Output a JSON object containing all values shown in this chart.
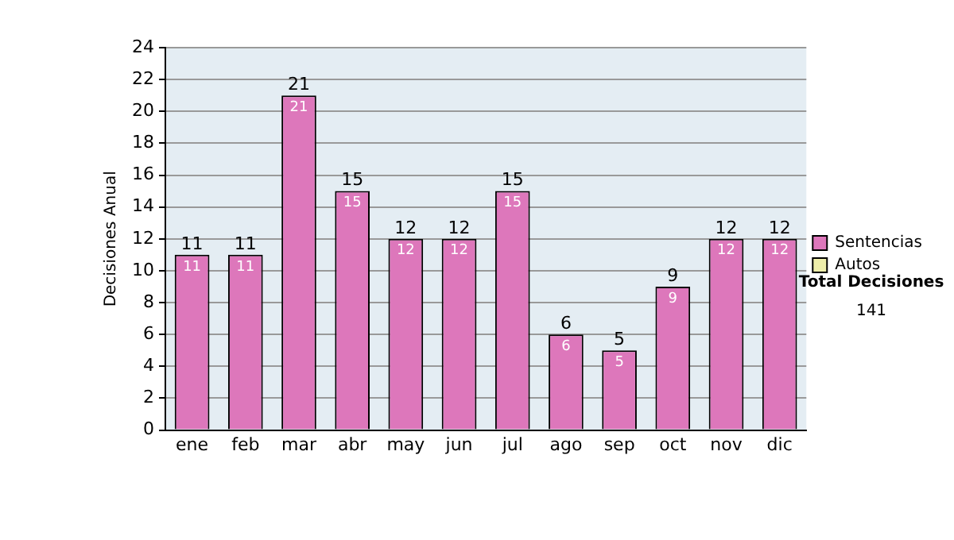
{
  "chart_data": {
    "type": "bar",
    "ylabel": "Decisiones Anual",
    "categories": [
      "ene",
      "feb",
      "mar",
      "abr",
      "may",
      "jun",
      "jul",
      "ago",
      "sep",
      "oct",
      "nov",
      "dic"
    ],
    "series": [
      {
        "name": "Sentencias",
        "color": "#dd77bb",
        "values": [
          11,
          11,
          21,
          15,
          12,
          12,
          15,
          6,
          5,
          9,
          12,
          12
        ],
        "value_labels": [
          "11",
          "11",
          "21",
          "15",
          "12",
          "12",
          "15",
          "6",
          "5",
          "9",
          "12",
          "12"
        ]
      },
      {
        "name": "Autos",
        "color": "#eeeeaa",
        "values": [
          0,
          0,
          0,
          0,
          0,
          0,
          0,
          0,
          0,
          0,
          0,
          0
        ]
      }
    ],
    "stacked": true,
    "totals": [
      "11",
      "11",
      "21",
      "15",
      "12",
      "12",
      "15",
      "6",
      "5",
      "9",
      "12",
      "12"
    ],
    "ylim": [
      0,
      24
    ],
    "yticks": [
      0,
      2,
      4,
      6,
      8,
      10,
      12,
      14,
      16,
      18,
      20,
      22,
      24
    ],
    "grid": "y",
    "legend": "right",
    "annotations": [
      "Total Decisiones",
      "141"
    ]
  }
}
